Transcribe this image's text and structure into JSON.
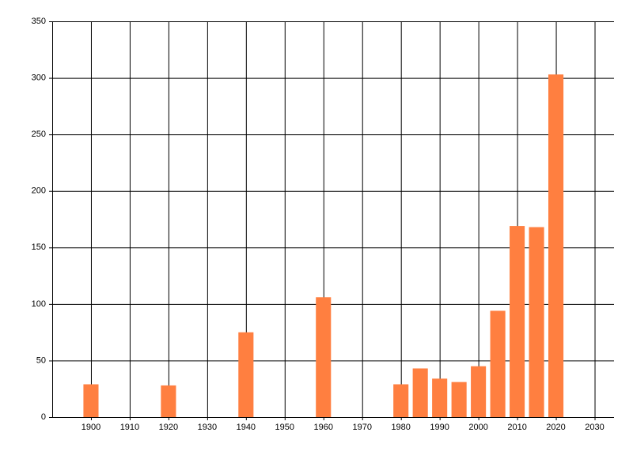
{
  "chart_data": {
    "type": "bar",
    "x": [
      1900,
      1920,
      1940,
      1960,
      1980,
      1985,
      1990,
      1995,
      2000,
      2005,
      2010,
      2015,
      2020
    ],
    "values": [
      29,
      28,
      75,
      106,
      29,
      43,
      34,
      31,
      45,
      94,
      169,
      168,
      303
    ],
    "color": "#ff7f40",
    "xlim": [
      1890,
      2035
    ],
    "xticks": [
      1900,
      1910,
      1920,
      1930,
      1940,
      1950,
      1960,
      1970,
      1980,
      1990,
      2000,
      2010,
      2020,
      2030
    ],
    "ylim": [
      0,
      350
    ],
    "yticks": [
      0,
      50,
      100,
      150,
      200,
      250,
      300,
      350
    ],
    "grid": true
  }
}
